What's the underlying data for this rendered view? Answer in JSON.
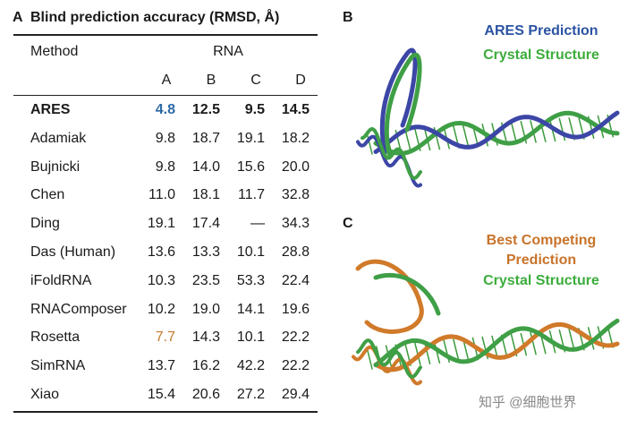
{
  "panels": {
    "a": {
      "label": "A",
      "title": "Blind prediction accuracy (RMSD, Å)",
      "header": {
        "method": "Method",
        "group": "RNA",
        "columns": [
          "A",
          "B",
          "C",
          "D"
        ]
      },
      "rows": [
        {
          "method": "ARES",
          "values": [
            "4.8",
            "12.5",
            "9.5",
            "14.5"
          ]
        },
        {
          "method": "Adamiak",
          "values": [
            "9.8",
            "18.7",
            "19.1",
            "18.2"
          ]
        },
        {
          "method": "Bujnicki",
          "values": [
            "9.8",
            "14.0",
            "15.6",
            "20.0"
          ]
        },
        {
          "method": "Chen",
          "values": [
            "11.0",
            "18.1",
            "11.7",
            "32.8"
          ]
        },
        {
          "method": "Ding",
          "values": [
            "19.1",
            "17.4",
            "—",
            "34.3"
          ]
        },
        {
          "method": "Das (Human)",
          "values": [
            "13.6",
            "13.3",
            "10.1",
            "28.8"
          ]
        },
        {
          "method": "iFoldRNA",
          "values": [
            "10.3",
            "23.5",
            "53.3",
            "22.4"
          ]
        },
        {
          "method": "RNAComposer",
          "values": [
            "10.2",
            "19.0",
            "14.1",
            "19.6"
          ]
        },
        {
          "method": "Rosetta",
          "values": [
            "7.7",
            "14.3",
            "10.1",
            "22.2"
          ]
        },
        {
          "method": "SimRNA",
          "values": [
            "13.7",
            "16.2",
            "42.2",
            "22.2"
          ]
        },
        {
          "method": "Xiao",
          "values": [
            "15.4",
            "20.6",
            "27.2",
            "29.4"
          ]
        }
      ]
    },
    "b": {
      "label": "B",
      "legend": [
        "ARES Prediction",
        "Crystal Structure"
      ]
    },
    "c": {
      "label": "C",
      "legend": [
        "Best Competing",
        "Prediction",
        "Crystal Structure"
      ]
    }
  },
  "watermark": "知乎 @细胞世界"
}
